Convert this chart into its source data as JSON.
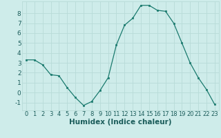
{
  "x": [
    0,
    1,
    2,
    3,
    4,
    5,
    6,
    7,
    8,
    9,
    10,
    11,
    12,
    13,
    14,
    15,
    16,
    17,
    18,
    19,
    20,
    21,
    22,
    23
  ],
  "y": [
    3.3,
    3.3,
    2.8,
    1.8,
    1.7,
    0.5,
    -0.5,
    -1.3,
    -0.9,
    0.2,
    1.5,
    4.8,
    6.8,
    7.5,
    8.8,
    8.8,
    8.3,
    8.2,
    7.0,
    5.0,
    3.0,
    1.5,
    0.3,
    -1.2
  ],
  "line_color": "#1a7a6e",
  "marker_color": "#1a7a6e",
  "bg_color": "#ceecea",
  "grid_color": "#b8dbd8",
  "xlabel": "Humidex (Indice chaleur)",
  "ylabel_ticks": [
    -1,
    0,
    1,
    2,
    3,
    4,
    5,
    6,
    7,
    8
  ],
  "ylim": [
    -1.8,
    9.2
  ],
  "xlim": [
    -0.5,
    23.5
  ],
  "tick_fontsize": 6.5,
  "xlabel_fontsize": 7.5,
  "label_color": "#1a5c5a"
}
